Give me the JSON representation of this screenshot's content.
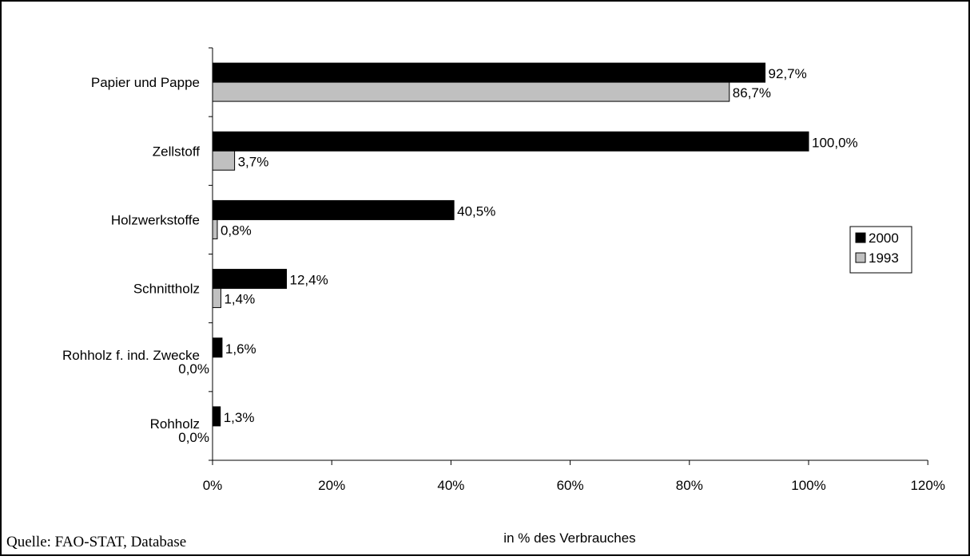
{
  "source_note": "Quelle: FAO-STAT, Database",
  "chart_data": {
    "type": "bar",
    "orientation": "horizontal",
    "categories": [
      "Papier und Pappe",
      "Zellstoff",
      "Holzwerkstoffe",
      "Schnittholz",
      "Rohholz f. ind. Zwecke",
      "Rohholz"
    ],
    "series": [
      {
        "name": "2000",
        "color": "#000000",
        "values": [
          92.7,
          100.0,
          40.5,
          12.4,
          1.6,
          1.3
        ],
        "labels": [
          "92,7%",
          "100,0%",
          "40,5%",
          "12,4%",
          "1,6%",
          "1,3%"
        ]
      },
      {
        "name": "1993",
        "color": "#c0c0c0",
        "values": [
          86.7,
          3.7,
          0.8,
          1.4,
          0.0,
          0.0
        ],
        "labels": [
          "86,7%",
          "3,7%",
          "0,8%",
          "1,4%",
          "0,0%",
          "0,0%"
        ]
      }
    ],
    "xlabel": "in % des Verbrauches",
    "xlim": [
      0,
      120
    ],
    "xticks": [
      0,
      20,
      40,
      60,
      80,
      100,
      120
    ],
    "xtick_labels": [
      "0%",
      "20%",
      "40%",
      "60%",
      "80%",
      "100%",
      "120%"
    ],
    "grid": false,
    "legend": "right"
  }
}
